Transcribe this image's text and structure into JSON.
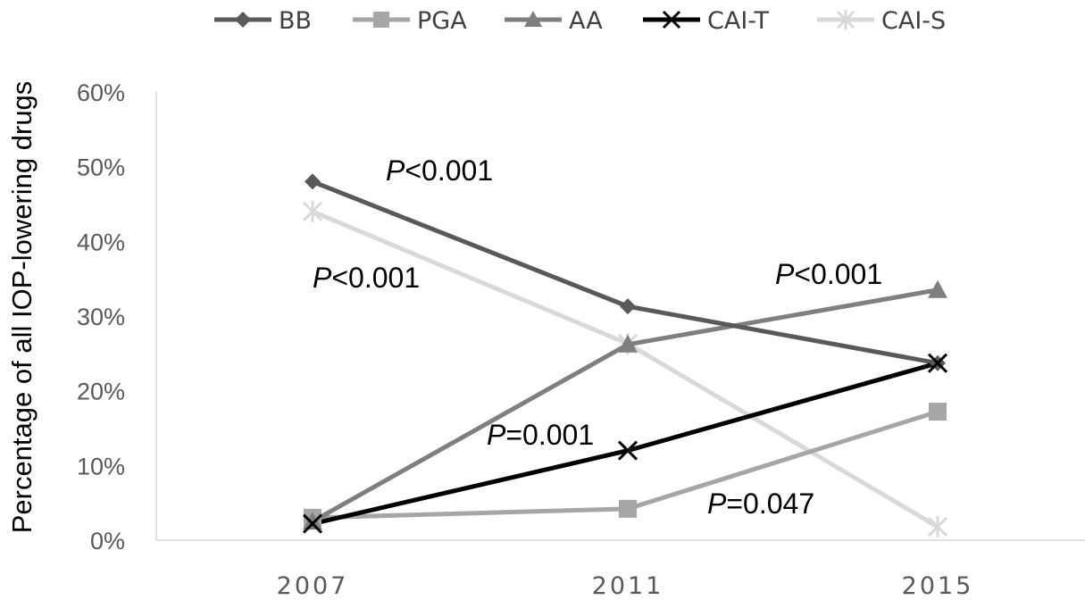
{
  "chart_data": {
    "type": "line",
    "title": "",
    "xlabel": "",
    "ylabel": "Percentage of all IOP-lowering drugs",
    "categories": [
      "2007",
      "2011",
      "2015"
    ],
    "ylim": [
      0,
      60
    ],
    "yticks": [
      "0%",
      "10%",
      "20%",
      "30%",
      "40%",
      "50%",
      "60%"
    ],
    "grid": false,
    "legend_position": "top",
    "series": [
      {
        "name": "BB",
        "values": [
          48,
          31.3,
          23.7
        ],
        "color": "#595959",
        "marker": "diamond"
      },
      {
        "name": "PGA",
        "values": [
          3.0,
          4.2,
          17.2
        ],
        "color": "#a6a6a6",
        "marker": "square"
      },
      {
        "name": "AA",
        "values": [
          2.5,
          26.2,
          33.5
        ],
        "color": "#7f7f7f",
        "marker": "triangle"
      },
      {
        "name": "CAI-T",
        "values": [
          2.2,
          12.0,
          23.7
        ],
        "color": "#000000",
        "marker": "x"
      },
      {
        "name": "CAI-S",
        "values": [
          44.0,
          26.3,
          1.8
        ],
        "color": "#d9d9d9",
        "marker": "star"
      }
    ],
    "annotations": [
      {
        "italic": "P",
        "rest": "<0.001"
      },
      {
        "italic": "P",
        "rest": "<0.001"
      },
      {
        "italic": "P",
        "rest": "<0.001"
      },
      {
        "italic": "P",
        "rest": "=0.001"
      },
      {
        "italic": "P",
        "rest": "=0.047"
      }
    ]
  }
}
